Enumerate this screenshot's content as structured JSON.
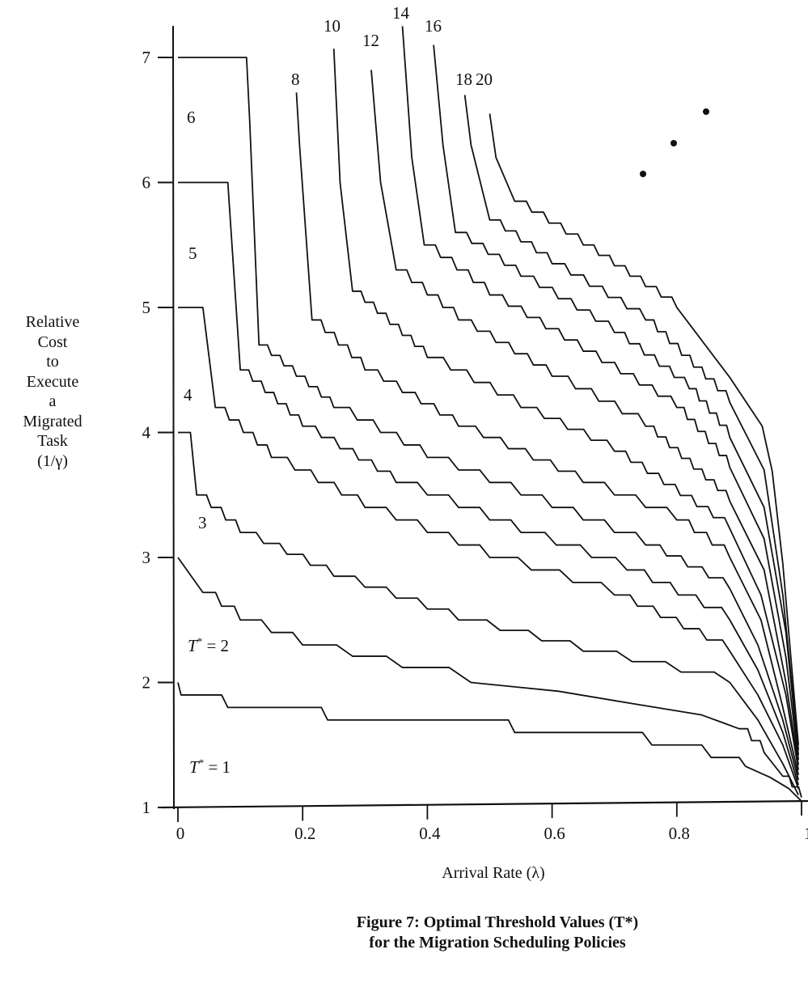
{
  "chart_data": {
    "type": "line",
    "title": "Figure 7: Optimal Threshold Values (T*) for the Migration Scheduling Policies",
    "caption_lines": [
      "Figure 7: Optimal Threshold Values (T*)",
      "for the Migration Scheduling Policies"
    ],
    "xlabel": "Arrival Rate (λ)",
    "ylabel_lines": [
      "Relative",
      "Cost",
      "to",
      "Execute",
      "a",
      "Migrated",
      "Task",
      "(1/γ)"
    ],
    "xlim": [
      0,
      1
    ],
    "ylim": [
      1,
      7.3
    ],
    "x_ticks": [
      "0",
      "0.2",
      "0.4",
      "0.6",
      "0.8",
      "1"
    ],
    "x_tick_values": [
      0,
      0.2,
      0.4,
      0.6,
      0.8,
      1
    ],
    "y_ticks": [
      "1",
      "2",
      "3",
      "4",
      "5",
      "6",
      "7"
    ],
    "y_tick_values": [
      1,
      2,
      3,
      4,
      5,
      6,
      7
    ],
    "grid": false,
    "line_color": "#111111",
    "region_labels": [
      {
        "text": "T* = 1",
        "prefix": "T",
        "suffix": " = 1"
      },
      {
        "text": "T* = 2",
        "prefix": "T",
        "suffix": " = 2"
      },
      {
        "text": "3"
      },
      {
        "text": "4"
      },
      {
        "text": "5"
      },
      {
        "text": "6"
      }
    ],
    "curve_labels": [
      "8",
      "10",
      "12",
      "14",
      "16",
      "18",
      "20"
    ],
    "continuation_marker": "•  •  •",
    "series": [
      {
        "boundary": "1/2",
        "points": [
          [
            0,
            2
          ],
          [
            0.005,
            1.9
          ],
          [
            0.07,
            1.9
          ],
          [
            0.08,
            1.8
          ],
          [
            0.23,
            1.8
          ],
          [
            0.24,
            1.7
          ],
          [
            0.53,
            1.7
          ],
          [
            0.54,
            1.6
          ],
          [
            0.745,
            1.6
          ],
          [
            0.76,
            1.5
          ],
          [
            0.84,
            1.5
          ],
          [
            0.855,
            1.4
          ],
          [
            0.9,
            1.4
          ],
          [
            0.91,
            1.33
          ],
          [
            0.95,
            1.24
          ],
          [
            0.98,
            1.15
          ],
          [
            1.0,
            1.05
          ]
        ]
      },
      {
        "boundary": "2/3",
        "points": [
          [
            0,
            3
          ],
          [
            0.04,
            2.72
          ],
          [
            0.1,
            2.5
          ],
          [
            0.2,
            2.3
          ],
          [
            0.36,
            2.12
          ],
          [
            0.47,
            2.0
          ],
          [
            0.61,
            1.93
          ],
          [
            0.73,
            1.83
          ],
          [
            0.84,
            1.74
          ],
          [
            0.9,
            1.63
          ],
          [
            0.94,
            1.44
          ],
          [
            0.97,
            1.25
          ],
          [
            1.0,
            1.08
          ]
        ]
      },
      {
        "boundary": "3/4",
        "points": [
          [
            0,
            4
          ],
          [
            0.02,
            4
          ],
          [
            0.03,
            3.5
          ],
          [
            0.1,
            3.2
          ],
          [
            0.25,
            2.85
          ],
          [
            0.45,
            2.5
          ],
          [
            0.65,
            2.25
          ],
          [
            0.885,
            2.0
          ],
          [
            0.93,
            1.7
          ],
          [
            0.97,
            1.35
          ],
          [
            0.995,
            1.1
          ]
        ]
      },
      {
        "boundary": "4/5",
        "points": [
          [
            0,
            5
          ],
          [
            0.04,
            5
          ],
          [
            0.06,
            4.2
          ],
          [
            0.15,
            3.8
          ],
          [
            0.3,
            3.4
          ],
          [
            0.5,
            3.0
          ],
          [
            0.7,
            2.7
          ],
          [
            0.885,
            2.25
          ],
          [
            0.93,
            1.9
          ],
          [
            0.97,
            1.5
          ],
          [
            0.995,
            1.15
          ]
        ]
      },
      {
        "boundary": "5/6",
        "points": [
          [
            0,
            6
          ],
          [
            0.08,
            6
          ],
          [
            0.1,
            4.5
          ],
          [
            0.2,
            4.05
          ],
          [
            0.35,
            3.6
          ],
          [
            0.55,
            3.2
          ],
          [
            0.72,
            2.9
          ],
          [
            0.885,
            2.5
          ],
          [
            0.93,
            2.1
          ],
          [
            0.97,
            1.6
          ],
          [
            0.995,
            1.18
          ]
        ]
      },
      {
        "boundary": "6/7",
        "points": [
          [
            0,
            7
          ],
          [
            0.11,
            7
          ],
          [
            0.115,
            6.5
          ],
          [
            0.13,
            4.7
          ],
          [
            0.25,
            4.2
          ],
          [
            0.4,
            3.8
          ],
          [
            0.6,
            3.4
          ],
          [
            0.75,
            3.1
          ],
          [
            0.885,
            2.75
          ],
          [
            0.93,
            2.3
          ],
          [
            0.97,
            1.7
          ],
          [
            0.995,
            1.22
          ]
        ]
      },
      {
        "label": "8",
        "points": [
          [
            0.19,
            6.72
          ],
          [
            0.195,
            6.3
          ],
          [
            0.215,
            4.9
          ],
          [
            0.3,
            4.5
          ],
          [
            0.45,
            4.05
          ],
          [
            0.65,
            3.6
          ],
          [
            0.8,
            3.3
          ],
          [
            0.885,
            3.0
          ],
          [
            0.935,
            2.5
          ],
          [
            0.97,
            1.8
          ],
          [
            0.995,
            1.26
          ]
        ]
      },
      {
        "label": "10",
        "points": [
          [
            0.25,
            7.07
          ],
          [
            0.26,
            6.0
          ],
          [
            0.28,
            5.13
          ],
          [
            0.4,
            4.6
          ],
          [
            0.55,
            4.2
          ],
          [
            0.7,
            3.85
          ],
          [
            0.885,
            3.23
          ],
          [
            0.935,
            2.7
          ],
          [
            0.975,
            1.9
          ],
          [
            0.995,
            1.3
          ]
        ]
      },
      {
        "label": "12",
        "points": [
          [
            0.31,
            6.9
          ],
          [
            0.325,
            6.0
          ],
          [
            0.35,
            5.3
          ],
          [
            0.45,
            4.9
          ],
          [
            0.6,
            4.45
          ],
          [
            0.75,
            4.05
          ],
          [
            0.885,
            3.45
          ],
          [
            0.94,
            2.9
          ],
          [
            0.975,
            2.0
          ],
          [
            0.995,
            1.34
          ]
        ]
      },
      {
        "label": "14",
        "points": [
          [
            0.36,
            7.25
          ],
          [
            0.375,
            6.2
          ],
          [
            0.395,
            5.5
          ],
          [
            0.5,
            5.1
          ],
          [
            0.65,
            4.65
          ],
          [
            0.8,
            4.2
          ],
          [
            0.885,
            3.72
          ],
          [
            0.94,
            3.15
          ],
          [
            0.975,
            2.2
          ],
          [
            0.995,
            1.38
          ]
        ]
      },
      {
        "label": "16",
        "points": [
          [
            0.41,
            7.1
          ],
          [
            0.425,
            6.3
          ],
          [
            0.445,
            5.6
          ],
          [
            0.55,
            5.25
          ],
          [
            0.7,
            4.8
          ],
          [
            0.82,
            4.35
          ],
          [
            0.885,
            3.96
          ],
          [
            0.94,
            3.4
          ],
          [
            0.975,
            2.4
          ],
          [
            0.995,
            1.42
          ]
        ]
      },
      {
        "label": "18",
        "points": [
          [
            0.46,
            6.7
          ],
          [
            0.47,
            6.3
          ],
          [
            0.5,
            5.7
          ],
          [
            0.6,
            5.35
          ],
          [
            0.75,
            4.9
          ],
          [
            0.885,
            4.24
          ],
          [
            0.94,
            3.7
          ],
          [
            0.97,
            2.7
          ],
          [
            0.995,
            1.46
          ]
        ]
      },
      {
        "label": "20",
        "points": [
          [
            0.5,
            6.55
          ],
          [
            0.51,
            6.2
          ],
          [
            0.54,
            5.85
          ],
          [
            0.65,
            5.5
          ],
          [
            0.8,
            5.0
          ],
          [
            0.885,
            4.44
          ],
          [
            0.937,
            4.05
          ],
          [
            0.953,
            3.69
          ],
          [
            0.97,
            2.95
          ],
          [
            0.995,
            1.5
          ]
        ]
      }
    ]
  }
}
